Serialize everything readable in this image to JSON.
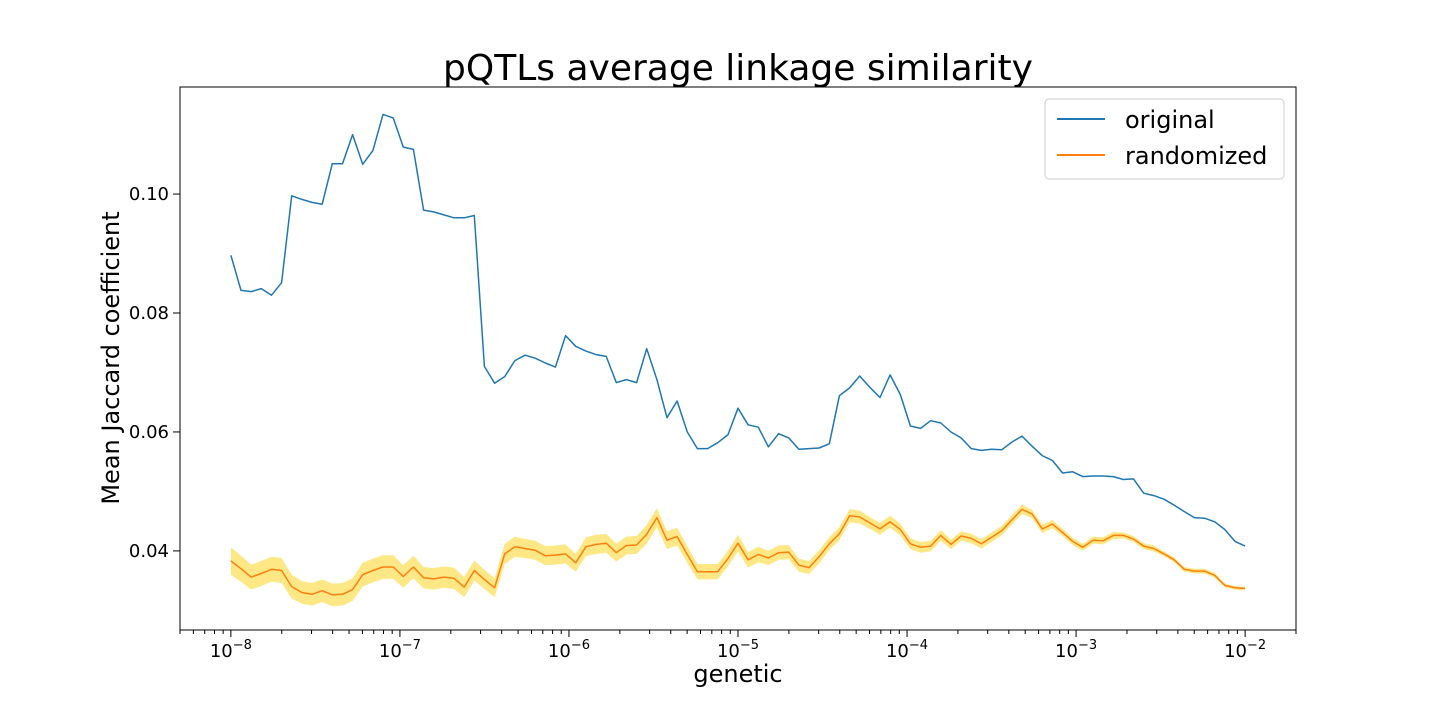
{
  "chart_data": {
    "type": "line",
    "title": "pQTLs average linkage similarity",
    "xlabel": "genetic",
    "ylabel": "Mean Jaccard coefficient",
    "xscale": "log",
    "xlim": [
      5e-09,
      0.02
    ],
    "ylim": [
      0.0267,
      0.118
    ],
    "x_ticks": [
      {
        "value": 1e-08,
        "base": "10",
        "exp": "−8"
      },
      {
        "value": 1e-07,
        "base": "10",
        "exp": "−7"
      },
      {
        "value": 1e-06,
        "base": "10",
        "exp": "−6"
      },
      {
        "value": 1e-05,
        "base": "10",
        "exp": "−5"
      },
      {
        "value": 0.0001,
        "base": "10",
        "exp": "−4"
      },
      {
        "value": 0.001,
        "base": "10",
        "exp": "−3"
      },
      {
        "value": 0.01,
        "base": "10",
        "exp": "−2"
      }
    ],
    "y_ticks": [
      {
        "value": 0.04,
        "label": "0.04"
      },
      {
        "value": 0.06,
        "label": "0.06"
      },
      {
        "value": 0.08,
        "label": "0.08"
      },
      {
        "value": 0.1,
        "label": "0.10"
      }
    ],
    "grid": false,
    "legend_position": "top-right",
    "x_log_start": -8,
    "x_log_end": -2,
    "series": [
      {
        "name": "original",
        "color": "#1f77b4",
        "values": [
          0.0897,
          0.0838,
          0.0836,
          0.0841,
          0.083,
          0.0851,
          0.0997,
          0.0991,
          0.0986,
          0.0983,
          0.1051,
          0.1051,
          0.11,
          0.105,
          0.1073,
          0.1134,
          0.1128,
          0.1079,
          0.1075,
          0.0973,
          0.097,
          0.0965,
          0.096,
          0.096,
          0.0964,
          0.071,
          0.0682,
          0.0693,
          0.072,
          0.0729,
          0.0724,
          0.0716,
          0.0709,
          0.0762,
          0.0744,
          0.0736,
          0.073,
          0.0727,
          0.0683,
          0.0688,
          0.0683,
          0.074,
          0.0688,
          0.0624,
          0.0652,
          0.06,
          0.0572,
          0.0572,
          0.0582,
          0.0595,
          0.064,
          0.0612,
          0.0608,
          0.0575,
          0.0597,
          0.059,
          0.0571,
          0.0572,
          0.0573,
          0.058,
          0.0661,
          0.0674,
          0.0694,
          0.0675,
          0.0658,
          0.0696,
          0.0663,
          0.061,
          0.0606,
          0.0619,
          0.0615,
          0.06,
          0.059,
          0.0572,
          0.0569,
          0.0571,
          0.057,
          0.0583,
          0.0593,
          0.0576,
          0.056,
          0.0552,
          0.0531,
          0.0533,
          0.0525,
          0.0526,
          0.0526,
          0.0525,
          0.052,
          0.0521,
          0.0497,
          0.0493,
          0.0487,
          0.0477,
          0.0466,
          0.0456,
          0.0455,
          0.0449,
          0.0436,
          0.0416,
          0.0408
        ]
      },
      {
        "name": "randomized",
        "color": "#ff7f0e",
        "band_color": "#fde05c",
        "values": [
          0.0383,
          0.037,
          0.0356,
          0.0362,
          0.0369,
          0.0367,
          0.034,
          0.033,
          0.0327,
          0.0333,
          0.0326,
          0.0327,
          0.0335,
          0.036,
          0.0367,
          0.0373,
          0.0373,
          0.0357,
          0.0373,
          0.0355,
          0.0353,
          0.0356,
          0.0354,
          0.0339,
          0.0367,
          0.0352,
          0.0338,
          0.0395,
          0.0407,
          0.0404,
          0.0401,
          0.0392,
          0.0393,
          0.0395,
          0.038,
          0.0407,
          0.0411,
          0.0413,
          0.0397,
          0.0409,
          0.041,
          0.0428,
          0.0456,
          0.0418,
          0.0424,
          0.0394,
          0.0365,
          0.0365,
          0.0365,
          0.0387,
          0.0413,
          0.0385,
          0.0394,
          0.0388,
          0.0397,
          0.0398,
          0.0376,
          0.0372,
          0.039,
          0.0412,
          0.0429,
          0.0459,
          0.0457,
          0.0447,
          0.0437,
          0.0449,
          0.0436,
          0.0412,
          0.0406,
          0.0408,
          0.0426,
          0.0411,
          0.0425,
          0.0421,
          0.0412,
          0.0423,
          0.0434,
          0.0452,
          0.047,
          0.0462,
          0.0437,
          0.0445,
          0.0431,
          0.0416,
          0.0406,
          0.0418,
          0.0417,
          0.0426,
          0.0426,
          0.042,
          0.0408,
          0.0404,
          0.0395,
          0.0385,
          0.0369,
          0.0366,
          0.0366,
          0.0359,
          0.0342,
          0.0338,
          0.0337
        ],
        "band_halfwidth": [
          0.0023,
          0.0022,
          0.0021,
          0.0021,
          0.0021,
          0.0021,
          0.002,
          0.0019,
          0.0019,
          0.0019,
          0.0019,
          0.0019,
          0.0019,
          0.002,
          0.002,
          0.002,
          0.002,
          0.0019,
          0.0019,
          0.0018,
          0.0018,
          0.0018,
          0.0018,
          0.0017,
          0.0017,
          0.0016,
          0.0016,
          0.0017,
          0.0017,
          0.0016,
          0.0016,
          0.0016,
          0.0016,
          0.0016,
          0.0015,
          0.0016,
          0.0016,
          0.0016,
          0.0015,
          0.0015,
          0.0015,
          0.0016,
          0.0016,
          0.0015,
          0.0015,
          0.0014,
          0.0013,
          0.0013,
          0.0013,
          0.0013,
          0.0014,
          0.0013,
          0.0013,
          0.0012,
          0.0012,
          0.0012,
          0.0011,
          0.0011,
          0.0011,
          0.0011,
          0.0011,
          0.0011,
          0.0011,
          0.001,
          0.001,
          0.001,
          0.001,
          0.0009,
          0.0009,
          0.0009,
          0.0009,
          0.0008,
          0.0008,
          0.0008,
          0.0008,
          0.0008,
          0.0008,
          0.0008,
          0.0008,
          0.0007,
          0.0007,
          0.0007,
          0.0006,
          0.0006,
          0.0006,
          0.0006,
          0.0006,
          0.0006,
          0.0005,
          0.0005,
          0.0005,
          0.0005,
          0.0004,
          0.0004,
          0.0004,
          0.0004,
          0.0004,
          0.0004,
          0.0003,
          0.0003,
          0.0003
        ]
      }
    ]
  }
}
